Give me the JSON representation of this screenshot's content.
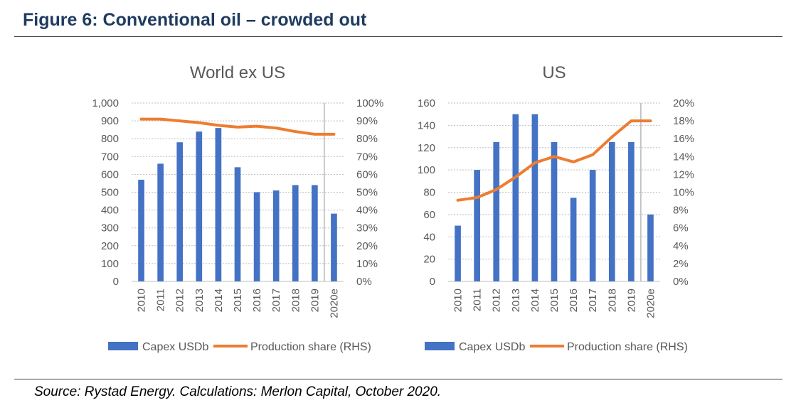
{
  "figure": {
    "title": "Figure 6: Conventional oil – crowded out",
    "source": "Source: Rystad Energy. Calculations: Merlon Capital, October 2020."
  },
  "colors": {
    "bar": "#4472c4",
    "line": "#ed7d31",
    "text": "#595959",
    "grid": "#bfbfbf",
    "title": "#1f3b5f"
  },
  "chart_data": [
    {
      "type": "bar",
      "title": "World ex US",
      "categories": [
        "2010",
        "2011",
        "2012",
        "2013",
        "2014",
        "2015",
        "2016",
        "2017",
        "2018",
        "2019",
        "2020e"
      ],
      "series": [
        {
          "name": "Capex USDb",
          "type": "bar",
          "axis": "left",
          "values": [
            570,
            660,
            780,
            840,
            860,
            640,
            500,
            510,
            540,
            540,
            380
          ]
        },
        {
          "name": "Production share (RHS)",
          "type": "line",
          "axis": "right",
          "values": [
            91,
            91,
            90,
            89,
            87.5,
            86.5,
            87,
            86,
            84,
            82.5,
            82.5
          ]
        }
      ],
      "ylim_left": [
        0,
        1000
      ],
      "yticks_left": [
        "0",
        "100",
        "200",
        "300",
        "400",
        "500",
        "600",
        "700",
        "800",
        "900",
        "1,000"
      ],
      "ylim_right": [
        0,
        100
      ],
      "yticks_right": [
        "0%",
        "10%",
        "20%",
        "30%",
        "40%",
        "50%",
        "60%",
        "70%",
        "80%",
        "90%",
        "100%"
      ],
      "grid": true,
      "forecast_divider_after": "2019",
      "legend_position": "bottom"
    },
    {
      "type": "bar",
      "title": "US",
      "categories": [
        "2010",
        "2011",
        "2012",
        "2013",
        "2014",
        "2015",
        "2016",
        "2017",
        "2018",
        "2019",
        "2020e"
      ],
      "series": [
        {
          "name": "Capex USDb",
          "type": "bar",
          "axis": "left",
          "values": [
            50,
            100,
            125,
            150,
            150,
            125,
            75,
            100,
            125,
            125,
            60
          ]
        },
        {
          "name": "Production share (RHS)",
          "type": "line",
          "axis": "right",
          "values": [
            9.1,
            9.4,
            10.3,
            11.7,
            13.3,
            14.0,
            13.4,
            14.2,
            16.2,
            18.0,
            18.0
          ]
        }
      ],
      "ylim_left": [
        0,
        160
      ],
      "yticks_left": [
        "0",
        "20",
        "40",
        "60",
        "80",
        "100",
        "120",
        "140",
        "160"
      ],
      "ylim_right": [
        0,
        20
      ],
      "yticks_right": [
        "0%",
        "2%",
        "4%",
        "6%",
        "8%",
        "10%",
        "12%",
        "14%",
        "16%",
        "18%",
        "20%"
      ],
      "grid": true,
      "forecast_divider_after": "2019",
      "legend_position": "bottom"
    }
  ]
}
